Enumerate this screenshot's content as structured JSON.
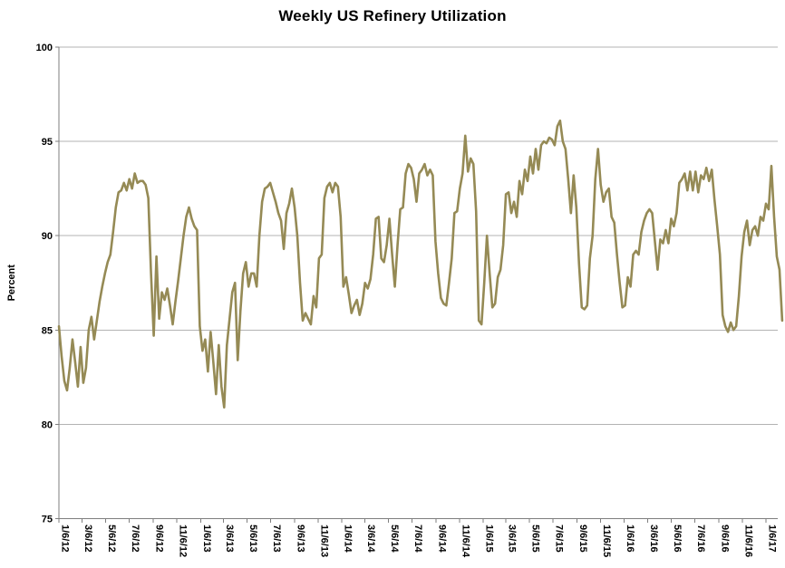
{
  "chart_data": {
    "type": "line",
    "title": "Weekly US Refinery Utilization",
    "xlabel": "",
    "ylabel": "Percent",
    "ylim": [
      75,
      100
    ],
    "yticks": [
      100,
      95,
      90,
      85,
      80,
      75
    ],
    "grid": "horizontal-gridlines-every-5",
    "legend": "none",
    "x_frequency": "weekly",
    "x_tick_labels": [
      "1/6/12",
      "3/6/12",
      "5/6/12",
      "7/6/12",
      "9/6/12",
      "11/6/12",
      "1/6/13",
      "3/6/13",
      "5/6/13",
      "7/6/13",
      "9/6/13",
      "11/6/13",
      "1/6/14",
      "3/6/14",
      "5/6/14",
      "7/6/14",
      "9/6/14",
      "11/6/14",
      "1/6/15",
      "3/6/15",
      "5/6/15",
      "7/6/15",
      "9/6/15",
      "11/6/15",
      "1/6/16",
      "3/6/16",
      "5/6/16",
      "7/6/16",
      "9/6/16",
      "11/6/16",
      "1/6/17"
    ],
    "colors": {
      "line": "#958A55",
      "gridline": "#b3b3b3",
      "axis": "#7f7f7f",
      "text": "#000000",
      "background": "#ffffff"
    },
    "series": [
      {
        "name": "Weekly US Refinery Utilization",
        "start_date": "1/6/12",
        "interval_days": 7,
        "values": [
          85.2,
          83.6,
          82.3,
          81.8,
          83.0,
          84.5,
          83.3,
          82.0,
          84.1,
          82.2,
          83.0,
          85.0,
          85.7,
          84.5,
          85.5,
          86.5,
          87.3,
          88.0,
          88.6,
          89.0,
          90.2,
          91.5,
          92.3,
          92.4,
          92.8,
          92.4,
          93.0,
          92.5,
          93.3,
          92.8,
          92.9,
          92.9,
          92.7,
          92.0,
          88.0,
          84.7,
          88.9,
          85.6,
          87.0,
          86.6,
          87.2,
          86.3,
          85.3,
          86.5,
          87.6,
          88.8,
          90.0,
          91.0,
          91.5,
          90.9,
          90.5,
          90.3,
          85.2,
          83.9,
          84.5,
          82.8,
          84.9,
          83.3,
          81.6,
          84.2,
          82.0,
          80.9,
          84.2,
          85.6,
          87.0,
          87.5,
          83.4,
          86.0,
          88.0,
          88.6,
          87.3,
          88.0,
          88.0,
          87.3,
          90.0,
          91.8,
          92.5,
          92.6,
          92.8,
          92.3,
          91.8,
          91.2,
          90.8,
          89.3,
          91.2,
          91.7,
          92.5,
          91.5,
          90.0,
          87.5,
          85.5,
          85.9,
          85.6,
          85.3,
          86.8,
          86.2,
          88.8,
          89.0,
          92.0,
          92.6,
          92.8,
          92.3,
          92.8,
          92.6,
          91.0,
          87.3,
          87.8,
          86.9,
          85.9,
          86.3,
          86.6,
          85.8,
          86.4,
          87.5,
          87.2,
          87.7,
          89.0,
          90.9,
          91.0,
          88.8,
          88.6,
          89.5,
          90.9,
          89.0,
          87.3,
          89.5,
          91.4,
          91.5,
          93.3,
          93.8,
          93.6,
          93.0,
          91.8,
          93.3,
          93.5,
          93.8,
          93.2,
          93.5,
          93.2,
          89.7,
          88.0,
          86.7,
          86.4,
          86.3,
          87.5,
          88.8,
          91.2,
          91.3,
          92.5,
          93.3,
          95.3,
          93.4,
          94.1,
          93.8,
          91.3,
          85.5,
          85.3,
          87.5,
          90.0,
          88.0,
          86.2,
          86.4,
          87.8,
          88.2,
          89.5,
          92.2,
          92.3,
          91.2,
          91.8,
          91.0,
          92.9,
          92.2,
          93.5,
          92.9,
          94.2,
          93.3,
          94.6,
          93.5,
          94.8,
          95.0,
          94.9,
          95.2,
          95.1,
          94.8,
          95.8,
          96.1,
          95.0,
          94.6,
          93.0,
          91.2,
          93.2,
          91.5,
          88.5,
          86.2,
          86.1,
          86.3,
          88.8,
          90.0,
          93.0,
          94.6,
          92.7,
          91.8,
          92.3,
          92.5,
          91.0,
          90.7,
          89.0,
          87.5,
          86.2,
          86.3,
          87.8,
          87.3,
          89.0,
          89.2,
          89.0,
          90.2,
          90.8,
          91.2,
          91.4,
          91.2,
          89.7,
          88.2,
          89.8,
          89.6,
          90.3,
          89.6,
          90.9,
          90.5,
          91.2,
          92.8,
          93.0,
          93.3,
          92.4,
          93.4,
          92.4,
          93.4,
          92.3,
          93.2,
          93.0,
          93.6,
          92.9,
          93.5,
          91.9,
          90.5,
          89.0,
          85.8,
          85.2,
          84.9,
          85.4,
          85.0,
          85.2,
          86.8,
          88.9,
          90.2,
          90.8,
          89.5,
          90.3,
          90.5,
          90.0,
          91.0,
          90.8,
          91.7,
          91.4,
          93.7,
          91.0,
          88.9,
          88.2,
          85.5
        ]
      }
    ]
  }
}
